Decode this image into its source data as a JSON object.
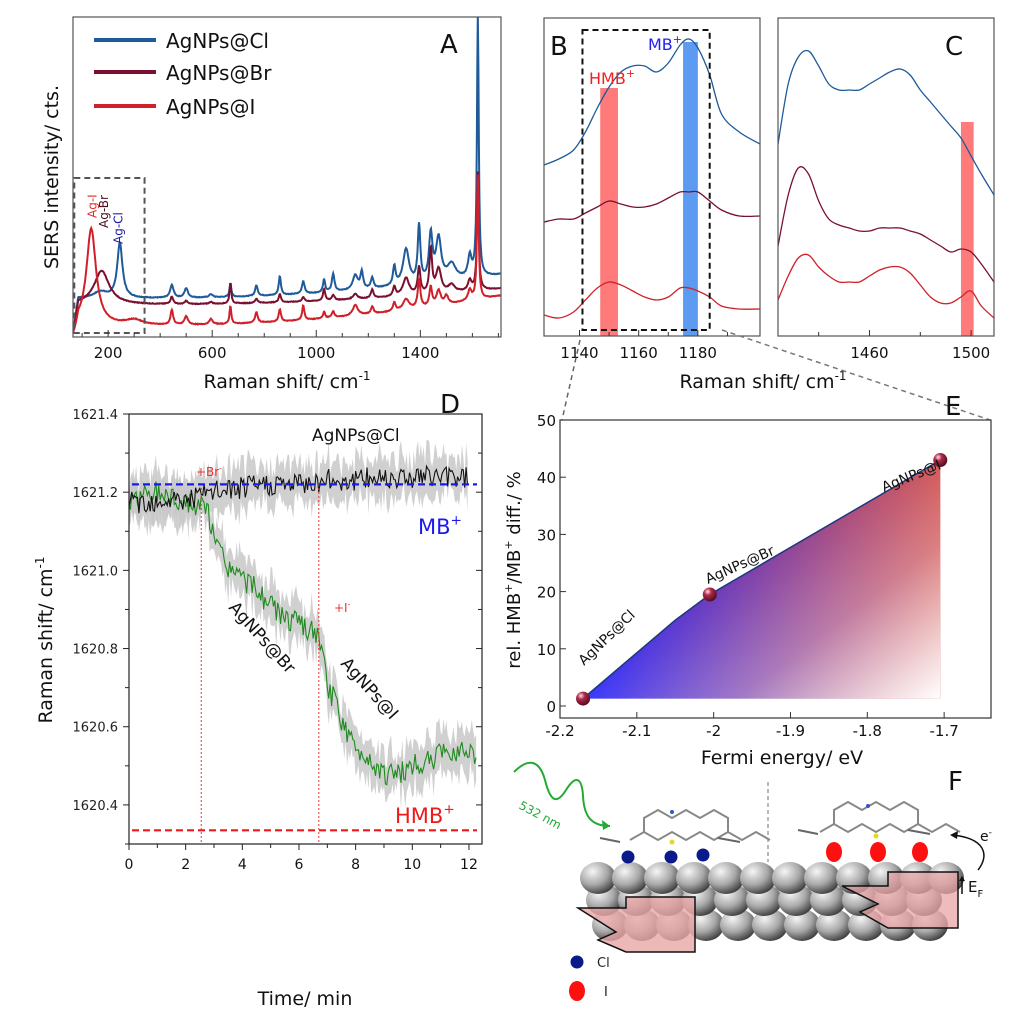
{
  "chart_data": [
    {
      "panel": "A",
      "type": "line",
      "panel_label": "A",
      "xlabel": "Raman shift/ cm-1",
      "xlabel_main": "Raman shift/ cm",
      "xlabel_sup": "-1",
      "ylabel": "SERS intensity/ cts.",
      "xlim": [
        65,
        1710
      ],
      "ylim": [
        0,
        1
      ],
      "xticks": [
        200,
        600,
        1000,
        1400
      ],
      "xticks_minor": [
        100,
        300,
        400,
        500,
        700,
        800,
        900,
        1100,
        1200,
        1300,
        1500,
        1600,
        1700
      ],
      "yticks": [],
      "grid": false,
      "legend_position": "top-left",
      "series": [
        {
          "name": "AgNPs@Cl",
          "color": "#1f5a99",
          "baseline": 0.33,
          "tail": 0.55,
          "peaks": [
            [
              170,
              0.06,
              30
            ],
            [
              245,
              0.52,
              12
            ],
            [
              445,
              0.12,
              8
            ],
            [
              500,
              0.09,
              8
            ],
            [
              595,
              0.03,
              8
            ],
            [
              670,
              0.13,
              4
            ],
            [
              770,
              0.1,
              6
            ],
            [
              860,
              0.18,
              5
            ],
            [
              950,
              0.12,
              6
            ],
            [
              1030,
              0.12,
              5
            ],
            [
              1065,
              0.17,
              6
            ],
            [
              1150,
              0.14,
              12
            ],
            [
              1175,
              0.16,
              6
            ],
            [
              1215,
              0.1,
              6
            ],
            [
              1300,
              0.18,
              6
            ],
            [
              1345,
              0.34,
              14
            ],
            [
              1395,
              0.54,
              6
            ],
            [
              1440,
              0.44,
              8
            ],
            [
              1470,
              0.4,
              12
            ],
            [
              1520,
              0.15,
              20
            ],
            [
              1590,
              0.2,
              8
            ],
            [
              1621,
              2.48,
              4
            ]
          ]
        },
        {
          "name": "AgNPs@Br",
          "color": "#7a1030",
          "baseline": 0.27,
          "tail": 0.42,
          "peaks": [
            [
              175,
              0.32,
              35
            ],
            [
              445,
              0.07,
              6
            ],
            [
              500,
              0.03,
              6
            ],
            [
              595,
              0.02,
              6
            ],
            [
              670,
              0.2,
              4
            ],
            [
              770,
              0.04,
              6
            ],
            [
              860,
              0.08,
              5
            ],
            [
              950,
              0.04,
              6
            ],
            [
              1030,
              0.11,
              5
            ],
            [
              1065,
              0.05,
              6
            ],
            [
              1150,
              0.05,
              10
            ],
            [
              1215,
              0.08,
              6
            ],
            [
              1300,
              0.09,
              6
            ],
            [
              1345,
              0.17,
              14
            ],
            [
              1395,
              0.26,
              6
            ],
            [
              1440,
              0.42,
              6
            ],
            [
              1470,
              0.23,
              12
            ],
            [
              1520,
              0.07,
              15
            ],
            [
              1590,
              0.1,
              8
            ],
            [
              1621,
              1.12,
              4
            ]
          ]
        },
        {
          "name": "AgNPs@I",
          "color": "#d0202a",
          "baseline": 0.07,
          "tail": 0.35,
          "peaks": [
            [
              135,
              0.92,
              22
            ],
            [
              300,
              0.05,
              40
            ],
            [
              445,
              0.14,
              6
            ],
            [
              500,
              0.08,
              8
            ],
            [
              595,
              0.05,
              8
            ],
            [
              670,
              0.17,
              4
            ],
            [
              770,
              0.1,
              6
            ],
            [
              860,
              0.12,
              5
            ],
            [
              950,
              0.14,
              5
            ],
            [
              1030,
              0.06,
              5
            ],
            [
              1065,
              0.06,
              6
            ],
            [
              1150,
              0.1,
              12
            ],
            [
              1215,
              0.07,
              6
            ],
            [
              1300,
              0.08,
              6
            ],
            [
              1345,
              0.1,
              14
            ],
            [
              1395,
              0.27,
              6
            ],
            [
              1440,
              0.18,
              6
            ],
            [
              1470,
              0.14,
              10
            ],
            [
              1500,
              0.08,
              8
            ],
            [
              1590,
              0.1,
              8
            ],
            [
              1621,
              1.18,
              4
            ]
          ]
        }
      ],
      "inset_box": {
        "x_range": [
          70,
          340
        ],
        "style": "dashed",
        "color": "#555555"
      },
      "annotations": [
        {
          "text": "Ag-I",
          "x": 140,
          "color": "#e0302a"
        },
        {
          "text": "Ag-Br",
          "x": 185,
          "color": "#4a1020"
        },
        {
          "text": "Ag-Cl",
          "x": 240,
          "color": "#1a1aa0"
        }
      ]
    },
    {
      "panel": "B",
      "type": "line",
      "panel_label": "B",
      "xlim": [
        1128,
        1201
      ],
      "xticks": [
        1140,
        1160,
        1180
      ],
      "xticks_minor": [
        1150,
        1170,
        1190
      ],
      "shared_xlabel": "Raman shift/ cm-1",
      "highlight_bands": [
        {
          "label": "HMB+",
          "label_main": "HMB",
          "label_sup": "+",
          "x_range": [
            1147,
            1153
          ],
          "color": "#ff6b6b"
        },
        {
          "label": "MB+",
          "label_main": "MB",
          "label_sup": "+",
          "x_range": [
            1175,
            1180
          ],
          "color": "#4a90f0"
        }
      ],
      "dashed_box_x_range": [
        1141,
        1184
      ],
      "series": [
        {
          "name": "AgNPs@Cl",
          "color": "#1f5a99",
          "x": [
            1128,
            1133,
            1138,
            1142,
            1146,
            1150,
            1154,
            1158,
            1162,
            1166,
            1170,
            1174,
            1177,
            1180,
            1184,
            1188,
            1194,
            1201
          ],
          "y": [
            0.55,
            0.57,
            0.6,
            0.66,
            0.74,
            0.81,
            0.86,
            0.88,
            0.88,
            0.86,
            0.89,
            0.95,
            0.97,
            0.94,
            0.85,
            0.72,
            0.66,
            0.62
          ]
        },
        {
          "name": "AgNPs@Br",
          "color": "#7a1030",
          "x": [
            1128,
            1133,
            1138,
            1142,
            1146,
            1150,
            1154,
            1158,
            1162,
            1166,
            1170,
            1174,
            1177,
            1180,
            1184,
            1188,
            1194,
            1201
          ],
          "y": [
            0.36,
            0.37,
            0.37,
            0.39,
            0.41,
            0.43,
            0.42,
            0.41,
            0.41,
            0.42,
            0.44,
            0.46,
            0.46,
            0.46,
            0.43,
            0.4,
            0.38,
            0.38
          ]
        },
        {
          "name": "AgNPs@I",
          "color": "#d0202a",
          "x": [
            1128,
            1133,
            1138,
            1142,
            1146,
            1150,
            1154,
            1158,
            1162,
            1166,
            1170,
            1174,
            1177,
            1180,
            1184,
            1188,
            1194,
            1201
          ],
          "y": [
            0.05,
            0.04,
            0.06,
            0.1,
            0.14,
            0.16,
            0.15,
            0.13,
            0.11,
            0.1,
            0.11,
            0.14,
            0.14,
            0.13,
            0.11,
            0.08,
            0.07,
            0.07
          ]
        }
      ]
    },
    {
      "panel": "C",
      "type": "line",
      "panel_label": "C",
      "xlim": [
        1424,
        1509
      ],
      "xticks": [
        1460,
        1500
      ],
      "xticks_minor": [
        1440,
        1480
      ],
      "highlight_bands": [
        {
          "label": "",
          "x_range": [
            1496,
            1501
          ],
          "color": "#ff6b6b"
        }
      ],
      "series": [
        {
          "name": "AgNPs@Cl",
          "color": "#1f5a99",
          "x": [
            1424,
            1428,
            1432,
            1436,
            1440,
            1444,
            1448,
            1452,
            1456,
            1460,
            1464,
            1468,
            1472,
            1476,
            1480,
            1484,
            1488,
            1492,
            1496,
            1500,
            1504,
            1509
          ],
          "y": [
            0.62,
            0.82,
            0.91,
            0.93,
            0.88,
            0.82,
            0.8,
            0.8,
            0.8,
            0.82,
            0.84,
            0.86,
            0.87,
            0.85,
            0.8,
            0.76,
            0.72,
            0.68,
            0.64,
            0.58,
            0.52,
            0.45
          ]
        },
        {
          "name": "AgNPs@Br",
          "color": "#7a1030",
          "x": [
            1424,
            1428,
            1432,
            1436,
            1440,
            1444,
            1448,
            1452,
            1456,
            1460,
            1464,
            1468,
            1472,
            1476,
            1480,
            1484,
            1488,
            1492,
            1496,
            1500,
            1504,
            1509
          ],
          "y": [
            0.28,
            0.45,
            0.54,
            0.52,
            0.43,
            0.37,
            0.35,
            0.34,
            0.33,
            0.33,
            0.34,
            0.34,
            0.34,
            0.33,
            0.32,
            0.3,
            0.28,
            0.26,
            0.27,
            0.26,
            0.22,
            0.16
          ]
        },
        {
          "name": "AgNPs@I",
          "color": "#d0202a",
          "x": [
            1424,
            1428,
            1432,
            1436,
            1440,
            1444,
            1448,
            1452,
            1456,
            1460,
            1464,
            1468,
            1472,
            1476,
            1480,
            1484,
            1488,
            1492,
            1496,
            1500,
            1504,
            1509
          ],
          "y": [
            0.1,
            0.18,
            0.24,
            0.25,
            0.21,
            0.18,
            0.16,
            0.16,
            0.16,
            0.18,
            0.2,
            0.21,
            0.21,
            0.19,
            0.15,
            0.11,
            0.09,
            0.09,
            0.11,
            0.13,
            0.08,
            0.04
          ]
        }
      ]
    },
    {
      "panel": "D",
      "type": "line",
      "panel_label": "D",
      "xlabel": "Time/ min",
      "ylabel": "Raman shift/ cm-1",
      "ylabel_main": "Raman shift/ cm",
      "ylabel_sup": "-1",
      "xlim": [
        0,
        12.46
      ],
      "ylim": [
        1620.3,
        1621.4
      ],
      "xticks": [
        0,
        2,
        4,
        6,
        8,
        10,
        12
      ],
      "xticks_minor": [
        1,
        3,
        5,
        7,
        9,
        11
      ],
      "yticks": [
        1620.4,
        1620.6,
        1620.8,
        1621.0,
        1621.2,
        1621.4
      ],
      "ytick_labels": [
        "1620.4",
        "1620.6",
        "1620.8",
        "1621.0",
        "1621.2",
        "1621.4"
      ],
      "yticks_minor": [
        1620.3,
        1620.5,
        1620.7,
        1620.9,
        1621.1,
        1621.3
      ],
      "reference_lines": [
        {
          "label": "MB+",
          "label_main": "MB",
          "label_sup": "+",
          "y": 1621.22,
          "color": "#1a1aee"
        },
        {
          "label": "HMB+",
          "label_main": "HMB",
          "label_sup": "+",
          "y": 1620.335,
          "color": "#ee1a1a"
        }
      ],
      "event_lines": [
        {
          "label": "+Br-",
          "label_main": "+Br",
          "label_sup": "-",
          "x": 2.55,
          "color": "#ee3333"
        },
        {
          "label": "+I-",
          "label_main": "+I",
          "label_sup": "-",
          "x": 6.7,
          "color": "#ee3333"
        }
      ],
      "series": [
        {
          "name": "AgNPs@Cl",
          "color": "#111111",
          "band_color": "#c8c8c8",
          "x": [
            0,
            1,
            2,
            2.5,
            3,
            4,
            5,
            6,
            7,
            8,
            9,
            10,
            11,
            12
          ],
          "y": [
            1621.17,
            1621.18,
            1621.18,
            1621.19,
            1621.2,
            1621.21,
            1621.22,
            1621.22,
            1621.23,
            1621.23,
            1621.24,
            1621.24,
            1621.24,
            1621.24
          ],
          "band_halfwidth": 0.05
        },
        {
          "name": "AgNPs@Br / AgNPs@I",
          "color": "#1f8a1f",
          "band_color": "#c8c8c8",
          "x": [
            0,
            0.5,
            1,
            1.5,
            2,
            2.5,
            2.7,
            3,
            3.5,
            4,
            4.5,
            5,
            5.5,
            6,
            6.5,
            6.75,
            7,
            7.3,
            7.6,
            8,
            8.5,
            9,
            9.5,
            10,
            10.5,
            11,
            11.5,
            12,
            12.3
          ],
          "y": [
            1621.18,
            1621.19,
            1621.2,
            1621.19,
            1621.17,
            1621.16,
            1621.17,
            1621.08,
            1621.01,
            1620.98,
            1620.95,
            1620.91,
            1620.88,
            1620.86,
            1620.84,
            1620.82,
            1620.7,
            1620.66,
            1620.6,
            1620.54,
            1620.52,
            1620.48,
            1620.48,
            1620.5,
            1620.51,
            1620.53,
            1620.54,
            1620.55,
            1620.52
          ],
          "band_halfwidth": 0.05
        }
      ],
      "annotations": [
        {
          "text": "AgNPs@Cl",
          "x": 7.8,
          "y": 1621.33
        },
        {
          "text": "AgNPs@Br",
          "x": 4.6,
          "y": 1620.84,
          "rotation": 48
        },
        {
          "text": "AgNPs@I",
          "x": 8.6,
          "y": 1620.7,
          "rotation": 48
        }
      ]
    },
    {
      "panel": "E",
      "type": "area",
      "panel_label": "E",
      "xlabel": "Fermi energy/ eV",
      "ylabel": "rel. HMB+/MB+ diff./ %",
      "ylabel_parts": [
        "rel. HMB",
        "+",
        "/MB",
        "+",
        " diff./ %"
      ],
      "xlim": [
        -2.2,
        -1.639
      ],
      "ylim": [
        -2.1,
        50
      ],
      "xticks": [
        -2.2,
        -2.1,
        -2.0,
        -1.9,
        -1.8,
        -1.7
      ],
      "xtick_labels": [
        "-2.2",
        "-2.1",
        "-2",
        "-1.9",
        "-1.8",
        "-1.7"
      ],
      "yticks": [
        0,
        10,
        20,
        30,
        40,
        50
      ],
      "gradient": {
        "low": "#0000ff",
        "high": "#c01010",
        "fade": "#ffffff"
      },
      "points": [
        {
          "label": "AgNPs@Cl",
          "x": -2.17,
          "y": 1.3
        },
        {
          "label": "AgNPs@Br",
          "x": -2.005,
          "y": 19.5
        },
        {
          "label": "AgNPs@I",
          "x": -1.705,
          "y": 43.0
        }
      ],
      "polyline": {
        "x": [
          -2.17,
          -2.05,
          -2.005,
          -1.705
        ],
        "y": [
          1.3,
          15.0,
          19.5,
          43.0
        ]
      }
    }
  ],
  "zoom_connector": {
    "from": "B inset box",
    "to": "E",
    "style": "dashed"
  },
  "diagram_F": {
    "panel_label": "F",
    "laser_label": "532 nm",
    "electron_label": "e",
    "electron_sup": "-",
    "fermi_label": "E",
    "fermi_sub": "F",
    "legend": [
      {
        "label": "Cl",
        "color": "#0a1a8a",
        "shape": "circle"
      },
      {
        "label": "I",
        "color": "#ff1010",
        "shape": "ellipse"
      }
    ],
    "colors": {
      "laser": "#22aa33",
      "sphere": "#a0a0a0",
      "band_box": "#e8a6a6"
    }
  }
}
